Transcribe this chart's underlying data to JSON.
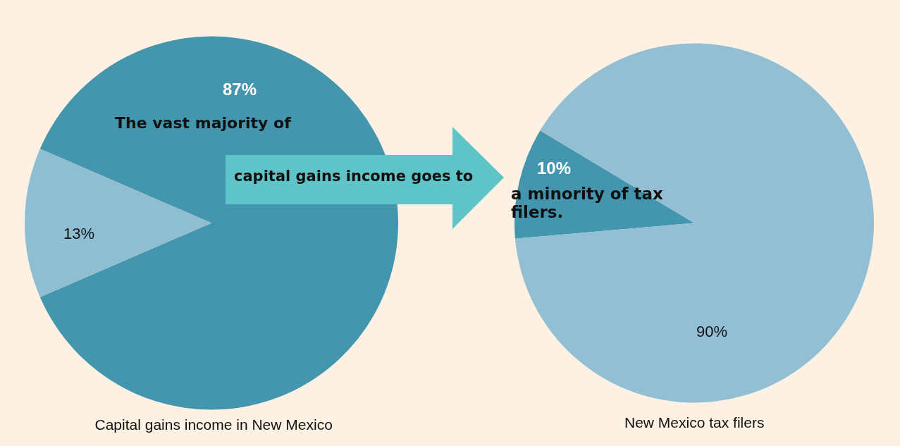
{
  "chart_data": [
    {
      "type": "pie",
      "title": "Capital gains income in New Mexico",
      "categories": [
        null,
        null
      ],
      "values": [
        87,
        13
      ],
      "colors": [
        "#4396ad",
        "#8fbdd1"
      ],
      "value_labels": [
        "87%",
        "13%"
      ],
      "legend": false,
      "annotations": [
        "The vast majority of",
        "capital gains income goes to"
      ]
    },
    {
      "type": "pie",
      "title": "New Mexico tax filers",
      "categories": [
        null,
        null
      ],
      "values": [
        10,
        90
      ],
      "colors": [
        "#4396ad",
        "#92bfd4"
      ],
      "value_labels": [
        "10%",
        "90%"
      ],
      "legend": false,
      "annotations": [
        "a minority of tax filers."
      ]
    }
  ]
}
